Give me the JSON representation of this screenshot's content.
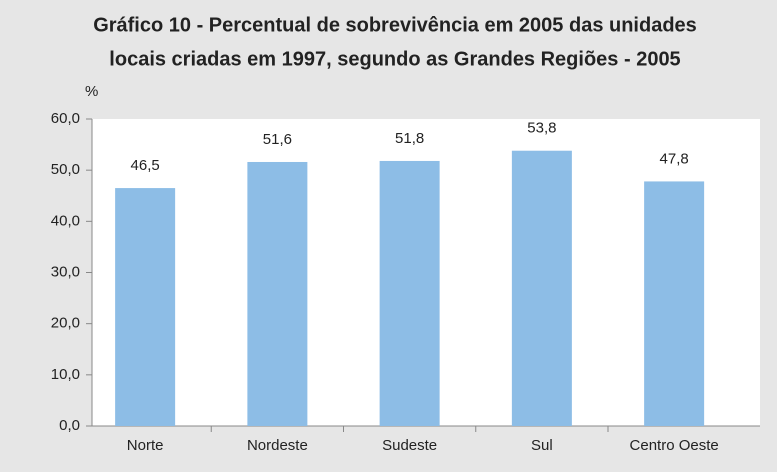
{
  "chart_data": {
    "type": "bar",
    "title": [
      "Gráfico 10 - Percentual de sobrevivência em 2005 das unidades",
      "locais criadas em 1997, segundo as Grandes Regiões - 2005"
    ],
    "y_label": "%",
    "categories": [
      "Norte",
      "Nordeste",
      "Sudeste",
      "Sul",
      "Centro Oeste"
    ],
    "values": [
      46.5,
      51.6,
      51.8,
      53.8,
      47.8
    ],
    "value_labels": [
      "46,5",
      "51,6",
      "51,8",
      "53,8",
      "47,8"
    ],
    "color": "#8dbde6",
    "ylim": [
      0,
      60
    ],
    "yticks": [
      {
        "value": 0,
        "label": "0,0"
      },
      {
        "value": 10,
        "label": "10,0"
      },
      {
        "value": 20,
        "label": "20,0"
      },
      {
        "value": 30,
        "label": "30,0"
      },
      {
        "value": 40,
        "label": "40,0"
      },
      {
        "value": 50,
        "label": "50,0"
      },
      {
        "value": 60,
        "label": "60,0"
      }
    ],
    "grid": false
  }
}
